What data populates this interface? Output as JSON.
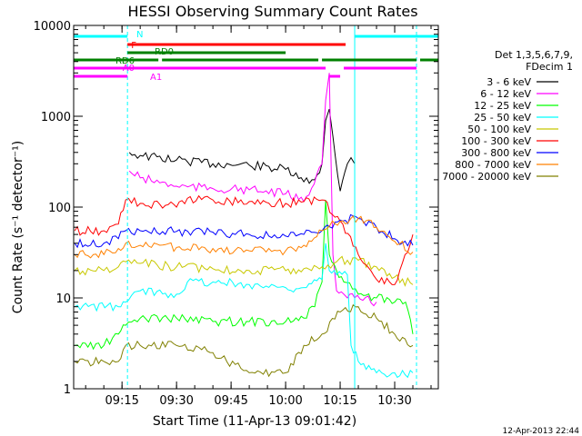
{
  "chart_data": {
    "type": "line",
    "title": "HESSI Observing Summary Count Rates",
    "xlabel": "Start Time (11-Apr-13 09:01:42)",
    "ylabel": "Count Rate (s⁻¹ detector⁻¹)",
    "y_scale": "log",
    "ylim": [
      1,
      10000
    ],
    "xlim": [
      "09:01:42",
      "10:42:00"
    ],
    "x_ticks": [
      "09:15",
      "09:30",
      "09:45",
      "10:00",
      "10:15",
      "10:30"
    ],
    "y_ticks": [
      "1",
      "10",
      "100",
      "1000",
      "10000"
    ],
    "timestamp": "12-Apr-2013 22:44",
    "legend": {
      "placement": "right",
      "header": [
        "Det 1,3,5,6,7,9,",
        "FDecim 1"
      ]
    },
    "series": [
      {
        "name": "3 - 6 keV",
        "color": "#000000",
        "x": [
          "09:01:42",
          "09:14",
          "09:16",
          "09:17",
          "09:20",
          "09:30",
          "09:40",
          "09:50",
          "10:00",
          "10:05",
          "10:08",
          "10:10",
          "10:11",
          "10:12",
          "10:13",
          "10:15",
          "10:17",
          "10:18",
          "10:19"
        ],
        "y": [
          null,
          null,
          null,
          400,
          370,
          330,
          300,
          290,
          260,
          190,
          200,
          300,
          900,
          1200,
          600,
          150,
          300,
          350,
          300
        ]
      },
      {
        "name": "6 - 12 keV",
        "color": "#ff00ff",
        "x": [
          "09:16",
          "09:17",
          "09:20",
          "09:30",
          "09:40",
          "09:50",
          "10:00",
          "10:05",
          "10:10",
          "10:11",
          "10:12",
          "10:13",
          "10:14",
          "10:16",
          "10:17",
          "10:19",
          "10:25"
        ],
        "y": [
          null,
          250,
          210,
          170,
          160,
          155,
          140,
          115,
          300,
          1500,
          3000,
          30,
          12,
          11,
          10,
          10,
          9
        ]
      },
      {
        "name": "12 - 25 keV",
        "color": "#00ff00",
        "x": [
          "09:02",
          "09:10",
          "09:14",
          "09:16",
          "09:20",
          "09:30",
          "09:40",
          "09:50",
          "10:00",
          "10:05",
          "10:08",
          "10:10",
          "10:11",
          "10:12",
          "10:14",
          "10:16",
          "10:20",
          "10:25",
          "10:30",
          "10:33",
          "10:35"
        ],
        "y": [
          3,
          3,
          4,
          5,
          6,
          6,
          5.5,
          5.5,
          5.5,
          6,
          8,
          15,
          120,
          30,
          20,
          15,
          11,
          10,
          9,
          9,
          4
        ]
      },
      {
        "name": "25 - 50 keV",
        "color": "#00ffff",
        "x": [
          "09:02",
          "09:14",
          "09:16",
          "09:20",
          "09:30",
          "09:33",
          "09:40",
          "09:50",
          "10:00",
          "10:05",
          "10:10",
          "10:11",
          "10:12",
          "10:14",
          "10:17",
          "10:18",
          "10:20",
          "10:25",
          "10:30",
          "10:35"
        ],
        "y": [
          8,
          8,
          9,
          12,
          11,
          15,
          15,
          14,
          13,
          13,
          16,
          40,
          20,
          18,
          18,
          3,
          2,
          1.5,
          1.5,
          1.5
        ]
      },
      {
        "name": "50 - 100 keV",
        "color": "#c8c800",
        "x": [
          "09:02",
          "09:10",
          "09:14",
          "09:16",
          "09:20",
          "09:30",
          "09:40",
          "09:50",
          "10:00",
          "10:05",
          "10:10",
          "10:14",
          "10:17",
          "10:20",
          "10:25",
          "10:30",
          "10:35"
        ],
        "y": [
          20,
          20,
          22,
          25,
          24,
          22,
          21,
          20,
          20,
          21,
          22,
          25,
          26,
          26,
          22,
          17,
          14
        ]
      },
      {
        "name": "100 - 300 keV",
        "color": "#ff0000",
        "x": [
          "09:02",
          "09:10",
          "09:14",
          "09:16",
          "09:20",
          "09:30",
          "09:33",
          "09:40",
          "09:50",
          "10:00",
          "10:05",
          "10:10",
          "10:15",
          "10:20",
          "10:25",
          "10:30",
          "10:35"
        ],
        "y": [
          55,
          55,
          65,
          120,
          110,
          100,
          125,
          120,
          115,
          110,
          115,
          120,
          70,
          30,
          16,
          14,
          50
        ]
      },
      {
        "name": "300 - 800 keV",
        "color": "#0000ff",
        "x": [
          "09:02",
          "09:10",
          "09:14",
          "09:16",
          "09:20",
          "09:30",
          "09:40",
          "09:50",
          "10:00",
          "10:05",
          "10:10",
          "10:15",
          "10:20",
          "10:25",
          "10:30",
          "10:35"
        ],
        "y": [
          40,
          40,
          45,
          55,
          55,
          54,
          53,
          50,
          48,
          50,
          55,
          72,
          75,
          60,
          45,
          38
        ]
      },
      {
        "name": "800 - 7000 keV",
        "color": "#ff8000",
        "x": [
          "09:02",
          "09:10",
          "09:14",
          "09:16",
          "09:20",
          "09:30",
          "09:40",
          "09:50",
          "10:00",
          "10:05",
          "10:10",
          "10:15",
          "10:20",
          "10:25",
          "10:30",
          "10:35"
        ],
        "y": [
          30,
          30,
          35,
          40,
          38,
          36,
          35,
          33,
          33,
          38,
          55,
          70,
          75,
          60,
          42,
          32
        ]
      },
      {
        "name": "7000 - 20000 keV",
        "color": "#808000",
        "x": [
          "09:02",
          "09:10",
          "09:14",
          "09:16",
          "09:20",
          "09:30",
          "09:40",
          "09:50",
          "10:00",
          "10:05",
          "10:10",
          "10:15",
          "10:20",
          "10:25",
          "10:30",
          "10:35"
        ],
        "y": [
          2,
          2,
          2,
          3,
          3,
          3,
          2.5,
          1.5,
          1.5,
          3,
          4,
          7,
          8,
          6,
          4,
          3
        ]
      }
    ],
    "state_bars": [
      {
        "label": "N",
        "color": "#00ffff",
        "segments": [
          [
            "09:01:42",
            "09:16:30"
          ],
          [
            "10:19",
            "10:42"
          ]
        ]
      },
      {
        "label": "F",
        "color": "#ff0000",
        "segments": [
          [
            "09:16:30",
            "10:16:30"
          ]
        ]
      },
      {
        "label": "RD0",
        "color": "#008000",
        "segments": [
          [
            "09:16:30",
            "10:00"
          ]
        ]
      },
      {
        "label": "RD6",
        "color": "#008000",
        "segments": [
          [
            "09:01:42",
            "09:25"
          ],
          [
            "09:26",
            "10:09"
          ],
          [
            "10:10",
            "10:36"
          ],
          [
            "10:37",
            "10:42"
          ]
        ]
      },
      {
        "label": "A0",
        "color": "#ff00ff",
        "segments": [
          [
            "09:01:42",
            "10:11"
          ],
          [
            "10:16",
            "10:36"
          ]
        ]
      },
      {
        "label": "A1",
        "color": "#ff00ff",
        "segments": [
          [
            "09:01:42",
            "09:16:30"
          ],
          [
            "10:12",
            "10:15"
          ]
        ]
      }
    ],
    "vertical_markers": [
      {
        "x": "09:16:30",
        "style": "dashed",
        "color": "#00ffff"
      },
      {
        "x": "10:19",
        "style": "solid",
        "color": "#00ffff"
      },
      {
        "x": "10:36",
        "style": "dashed",
        "color": "#00ffff"
      }
    ]
  }
}
